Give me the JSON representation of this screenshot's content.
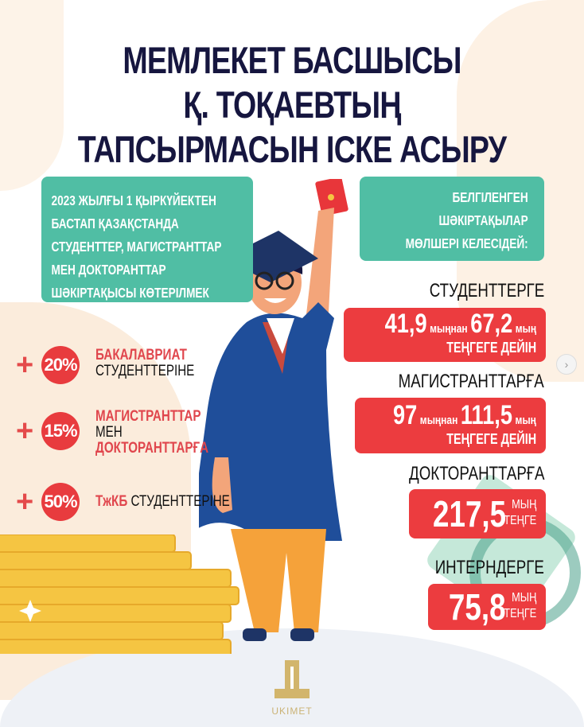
{
  "title": {
    "lines": [
      "МЕМЛЕКЕТ БАСШЫСЫ",
      "Қ. ТОҚАЕВТЫҢ",
      "ТАПСЫРМАСЫН ІСКЕ АСЫРУ"
    ]
  },
  "intro": {
    "lines": [
      "2023 ЖЫЛҒЫ 1 ҚЫРКҮЙЕКТЕН",
      "БАСТАП ҚАЗАҚСТАНДА",
      "СТУДЕНТТЕР, МАГИСТРАНТТАР",
      "МЕН ДОКТОРАНТТАР",
      "ШӘКІРТАҚЫСЫ КӨТЕРІЛМЕК"
    ]
  },
  "increases": [
    {
      "plus": "+",
      "percent": "20%",
      "red1": "БАКАЛАВРИАТ",
      "black1": "СТУДЕНТТЕРІНЕ"
    },
    {
      "plus": "+",
      "percent": "15%",
      "red1": "МАГИСТРАНТТАР",
      "black1": "МЕН",
      "red2": "ДОКТОРАНТТАРҒА"
    },
    {
      "plus": "+",
      "percent": "50%",
      "red1": "ТжКБ",
      "black1": "СТУДЕНТТЕРІНЕ"
    }
  ],
  "rates_intro": {
    "lines": [
      "БЕЛГІЛЕНГЕН",
      "ШӘКІРТАҚЫЛАР",
      "МӨЛШЕРІ КЕЛЕСІДЕЙ:"
    ]
  },
  "rates": [
    {
      "label": "СТУДЕНТТЕРГЕ",
      "from": "41,9",
      "from_unit": "мыңнан",
      "to": "67,2",
      "to_unit": "мың",
      "suffix": "ТЕҢГЕГЕ ДЕЙІН"
    },
    {
      "label": "МАГИСТРАНТТАРҒА",
      "from": "97",
      "from_unit": "мыңнан",
      "to": "111,5",
      "to_unit": "мың",
      "suffix": "ТЕҢГЕГЕ ДЕЙІН"
    },
    {
      "label": "ДОКТОРАНТТАРҒА",
      "value": "217,5",
      "unit1": "МЫҢ",
      "unit2": "ТЕҢГЕ"
    },
    {
      "label": "ИНТЕРНДЕРГЕ",
      "value": "75,8",
      "unit1": "МЫҢ",
      "unit2": "ТЕҢГЕ"
    }
  ],
  "logo": {
    "text": "UKIMET"
  },
  "nav": {
    "next_icon": "chevron-right-icon",
    "next_glyph": "›"
  },
  "colors": {
    "navy": "#16163f",
    "teal": "#50bea4",
    "red": "#ec3c3f",
    "gown": "#1f4e9a",
    "gold": "#f5c542"
  }
}
